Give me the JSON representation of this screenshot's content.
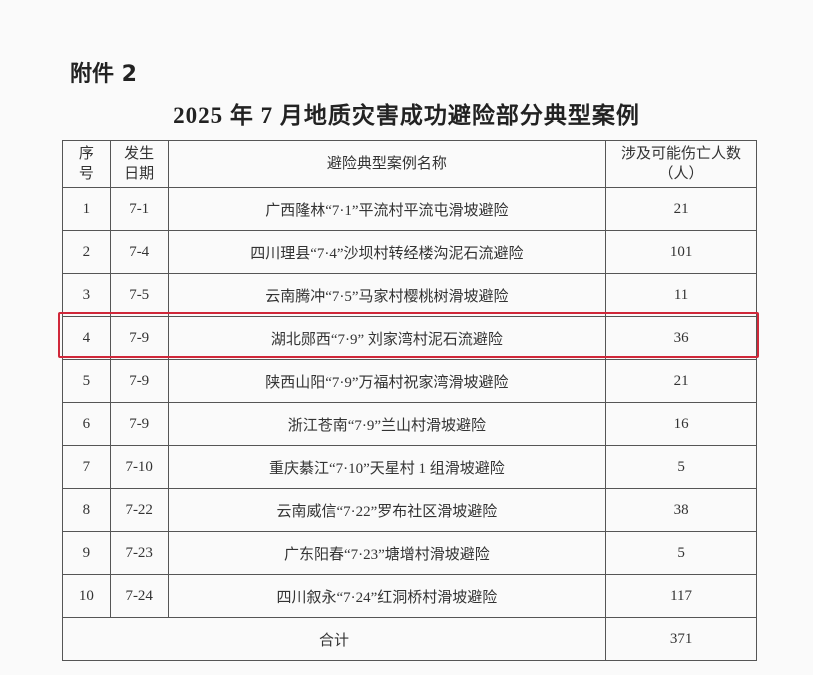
{
  "attachment_label": "附件 2",
  "title": "2025 年 7 月地质灾害成功避险部分典型案例",
  "table": {
    "headers": {
      "index": "序号",
      "date": "发生日期",
      "name": "避险典型案例名称",
      "count": "涉及可能伤亡人数（人）"
    },
    "rows": [
      {
        "index": "1",
        "date": "7-1",
        "name": "广西隆林“7·1”平流村平流屯滑坡避险",
        "count": "21"
      },
      {
        "index": "2",
        "date": "7-4",
        "name": "四川理县“7·4”沙坝村转经楼沟泥石流避险",
        "count": "101"
      },
      {
        "index": "3",
        "date": "7-5",
        "name": "云南腾冲“7·5”马家村樱桃树滑坡避险",
        "count": "11"
      },
      {
        "index": "4",
        "date": "7-9",
        "name": "湖北郧西“7·9” 刘家湾村泥石流避险",
        "count": "36"
      },
      {
        "index": "5",
        "date": "7-9",
        "name": "陕西山阳“7·9”万福村祝家湾滑坡避险",
        "count": "21"
      },
      {
        "index": "6",
        "date": "7-9",
        "name": "浙江苍南“7·9”兰山村滑坡避险",
        "count": "16"
      },
      {
        "index": "7",
        "date": "7-10",
        "name": "重庆綦江“7·10”天星村 1 组滑坡避险",
        "count": "5"
      },
      {
        "index": "8",
        "date": "7-22",
        "name": "云南威信“7·22”罗布社区滑坡避险",
        "count": "38"
      },
      {
        "index": "9",
        "date": "7-23",
        "name": "广东阳春“7·23”塘增村滑坡避险",
        "count": "5"
      },
      {
        "index": "10",
        "date": "7-24",
        "name": "四川叙永“7·24”红洞桥村滑坡避险",
        "count": "117"
      }
    ],
    "total_label": "合计",
    "total_count": "371"
  },
  "highlight": {
    "row_index": "4",
    "color": "#d0283a"
  }
}
